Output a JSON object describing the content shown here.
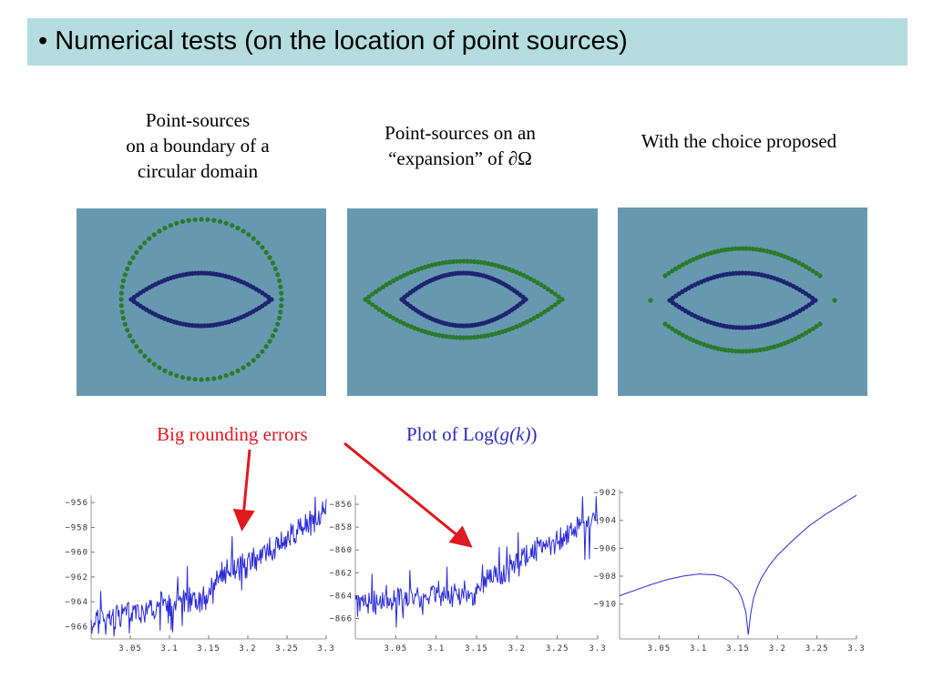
{
  "slide": {
    "title": "• Numerical tests (on the location of point sources)"
  },
  "captions": {
    "left": [
      "Point-sources",
      "on a boundary of a",
      "circular domain"
    ],
    "middle": [
      "Point-sources on an",
      "“expansion” of ∂Ω"
    ],
    "right": [
      "With the choice proposed"
    ]
  },
  "annotations": {
    "red_note": "Big rounding errors",
    "blue_note_prefix": "Plot of Log(",
    "blue_note_func": "g(k)",
    "blue_note_suffix": ")"
  },
  "colors": {
    "title_bar": "#b5dde0",
    "panel_bg": "#6699b0",
    "inner_points": "#1d2470",
    "outer_points": "#2a7a2a",
    "red": "#e0181f",
    "blue": "#2b2bbf",
    "plot_line": "#2a2ad8"
  },
  "chart_data": [
    {
      "type": "line",
      "title": "",
      "xlim": [
        3.0,
        3.3
      ],
      "xticks": [
        3.05,
        3.1,
        3.15,
        3.2,
        3.25,
        3.3
      ],
      "xtick_labels": [
        "3.05",
        "3.1",
        "3.15",
        "3.2",
        "3.25",
        "3.3"
      ],
      "ylim": [
        -967,
        -955.4
      ],
      "yticks": [
        -956,
        -958,
        -960,
        -962,
        -964,
        -966
      ],
      "ytick_labels": [
        "−956",
        "−958",
        "−960",
        "−962",
        "−964",
        "−966"
      ],
      "noisy": true,
      "trend": {
        "x": [
          3.0,
          3.1,
          3.15,
          3.16,
          3.2,
          3.3
        ],
        "y": [
          -965.6,
          -964.2,
          -963.6,
          -962.0,
          -961.0,
          -956.8
        ]
      },
      "noise": 0.9
    },
    {
      "type": "line",
      "title": "",
      "xlim": [
        3.0,
        3.3
      ],
      "xticks": [
        3.05,
        3.1,
        3.15,
        3.2,
        3.25,
        3.3
      ],
      "xtick_labels": [
        "3.05",
        "3.1",
        "3.15",
        "3.2",
        "3.25",
        "3.3"
      ],
      "ylim": [
        -867.8,
        -855.2
      ],
      "yticks": [
        -856,
        -858,
        -860,
        -862,
        -864,
        -866
      ],
      "ytick_labels": [
        "−856",
        "−858",
        "−860",
        "−862",
        "−864",
        "−866"
      ],
      "noisy": true,
      "trend": {
        "x": [
          3.0,
          3.1,
          3.15,
          3.16,
          3.2,
          3.3
        ],
        "y": [
          -864.8,
          -864.0,
          -864.2,
          -862.8,
          -861.0,
          -857.2
        ]
      },
      "noise": 0.9
    },
    {
      "type": "line",
      "title": "",
      "xlim": [
        3.0,
        3.3
      ],
      "xticks": [
        3.05,
        3.1,
        3.15,
        3.2,
        3.25,
        3.3
      ],
      "xtick_labels": [
        "3.05",
        "3.1",
        "3.15",
        "3.2",
        "3.25",
        "3.3"
      ],
      "ylim": [
        -912.5,
        -901.8
      ],
      "yticks": [
        -902,
        -904,
        -906,
        -908,
        -910
      ],
      "ytick_labels": [
        "−902",
        "−904",
        "−906",
        "−908",
        "−910"
      ],
      "noisy": false,
      "x": [
        3.0,
        3.02,
        3.04,
        3.06,
        3.08,
        3.1,
        3.12,
        3.13,
        3.14,
        3.15,
        3.155,
        3.16,
        3.163,
        3.166,
        3.17,
        3.175,
        3.18,
        3.19,
        3.2,
        3.22,
        3.24,
        3.26,
        3.28,
        3.3
      ],
      "y": [
        -909.4,
        -909.0,
        -908.6,
        -908.25,
        -908.0,
        -907.85,
        -907.9,
        -908.05,
        -908.4,
        -909.0,
        -909.6,
        -910.6,
        -912.2,
        -910.7,
        -909.5,
        -908.7,
        -908.1,
        -907.2,
        -906.5,
        -905.4,
        -904.4,
        -903.6,
        -902.9,
        -902.2
      ]
    }
  ]
}
